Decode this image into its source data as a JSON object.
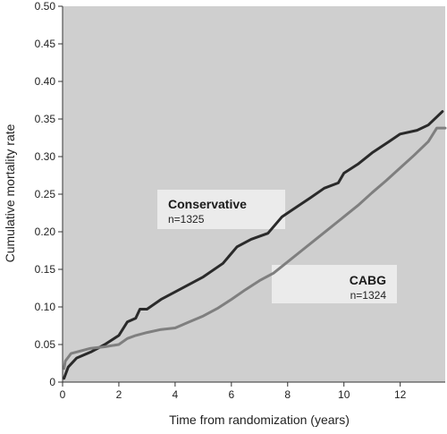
{
  "chart_data": {
    "type": "line",
    "title": "",
    "xlabel": "Time from randomization (years)",
    "ylabel": "Cumulative mortality rate",
    "xlim": [
      0,
      13.6
    ],
    "ylim": [
      0,
      0.5
    ],
    "x_ticks": [
      0,
      2,
      4,
      6,
      8,
      10,
      12
    ],
    "x_tick_labels": [
      "0",
      "2",
      "4",
      "6",
      "8",
      "10",
      "12"
    ],
    "y_ticks": [
      0,
      0.05,
      0.1,
      0.15,
      0.2,
      0.25,
      0.3,
      0.35,
      0.4,
      0.45,
      0.5
    ],
    "y_tick_labels": [
      "0",
      "0.05",
      "0.10",
      "0.15",
      "0.20",
      "0.25",
      "0.30",
      "0.35",
      "0.40",
      "0.45",
      "0.50"
    ],
    "grid": false,
    "plot_background": "#cfcfcf",
    "series": [
      {
        "name": "Conservative",
        "n_label": "n=1325",
        "color": "#2a2a2a",
        "points": [
          [
            0.05,
            0.005
          ],
          [
            0.2,
            0.02
          ],
          [
            0.5,
            0.032
          ],
          [
            1.0,
            0.04
          ],
          [
            1.5,
            0.05
          ],
          [
            2.0,
            0.062
          ],
          [
            2.3,
            0.08
          ],
          [
            2.6,
            0.085
          ],
          [
            2.75,
            0.097
          ],
          [
            3.0,
            0.097
          ],
          [
            3.5,
            0.11
          ],
          [
            4.0,
            0.12
          ],
          [
            5.0,
            0.14
          ],
          [
            5.7,
            0.158
          ],
          [
            6.2,
            0.18
          ],
          [
            6.7,
            0.19
          ],
          [
            7.3,
            0.198
          ],
          [
            7.8,
            0.22
          ],
          [
            8.2,
            0.23
          ],
          [
            8.8,
            0.245
          ],
          [
            9.3,
            0.258
          ],
          [
            9.8,
            0.265
          ],
          [
            10.0,
            0.278
          ],
          [
            10.5,
            0.29
          ],
          [
            11.0,
            0.305
          ],
          [
            11.6,
            0.32
          ],
          [
            12.0,
            0.33
          ],
          [
            12.6,
            0.335
          ],
          [
            13.0,
            0.342
          ],
          [
            13.5,
            0.36
          ]
        ]
      },
      {
        "name": "CABG",
        "n_label": "n=1324",
        "color": "#7f7f7f",
        "points": [
          [
            0.05,
            0.018
          ],
          [
            0.1,
            0.028
          ],
          [
            0.3,
            0.038
          ],
          [
            0.7,
            0.042
          ],
          [
            1.0,
            0.045
          ],
          [
            1.5,
            0.047
          ],
          [
            2.0,
            0.05
          ],
          [
            2.3,
            0.058
          ],
          [
            2.6,
            0.062
          ],
          [
            3.0,
            0.066
          ],
          [
            3.5,
            0.07
          ],
          [
            4.0,
            0.072
          ],
          [
            4.5,
            0.08
          ],
          [
            5.0,
            0.088
          ],
          [
            5.5,
            0.098
          ],
          [
            6.0,
            0.11
          ],
          [
            6.5,
            0.123
          ],
          [
            7.0,
            0.135
          ],
          [
            7.5,
            0.145
          ],
          [
            8.0,
            0.16
          ],
          [
            8.5,
            0.175
          ],
          [
            9.0,
            0.19
          ],
          [
            9.5,
            0.205
          ],
          [
            10.0,
            0.22
          ],
          [
            10.5,
            0.235
          ],
          [
            11.0,
            0.252
          ],
          [
            11.5,
            0.268
          ],
          [
            12.0,
            0.285
          ],
          [
            12.5,
            0.302
          ],
          [
            13.0,
            0.32
          ],
          [
            13.3,
            0.338
          ],
          [
            13.6,
            0.338
          ]
        ]
      }
    ],
    "annotations": [
      {
        "series": 0,
        "name": "Conservative",
        "n": "n=1325",
        "box_color": "#ebebeb"
      },
      {
        "series": 1,
        "name": "CABG",
        "n": "n=1324",
        "box_color": "#ebebeb"
      }
    ]
  }
}
